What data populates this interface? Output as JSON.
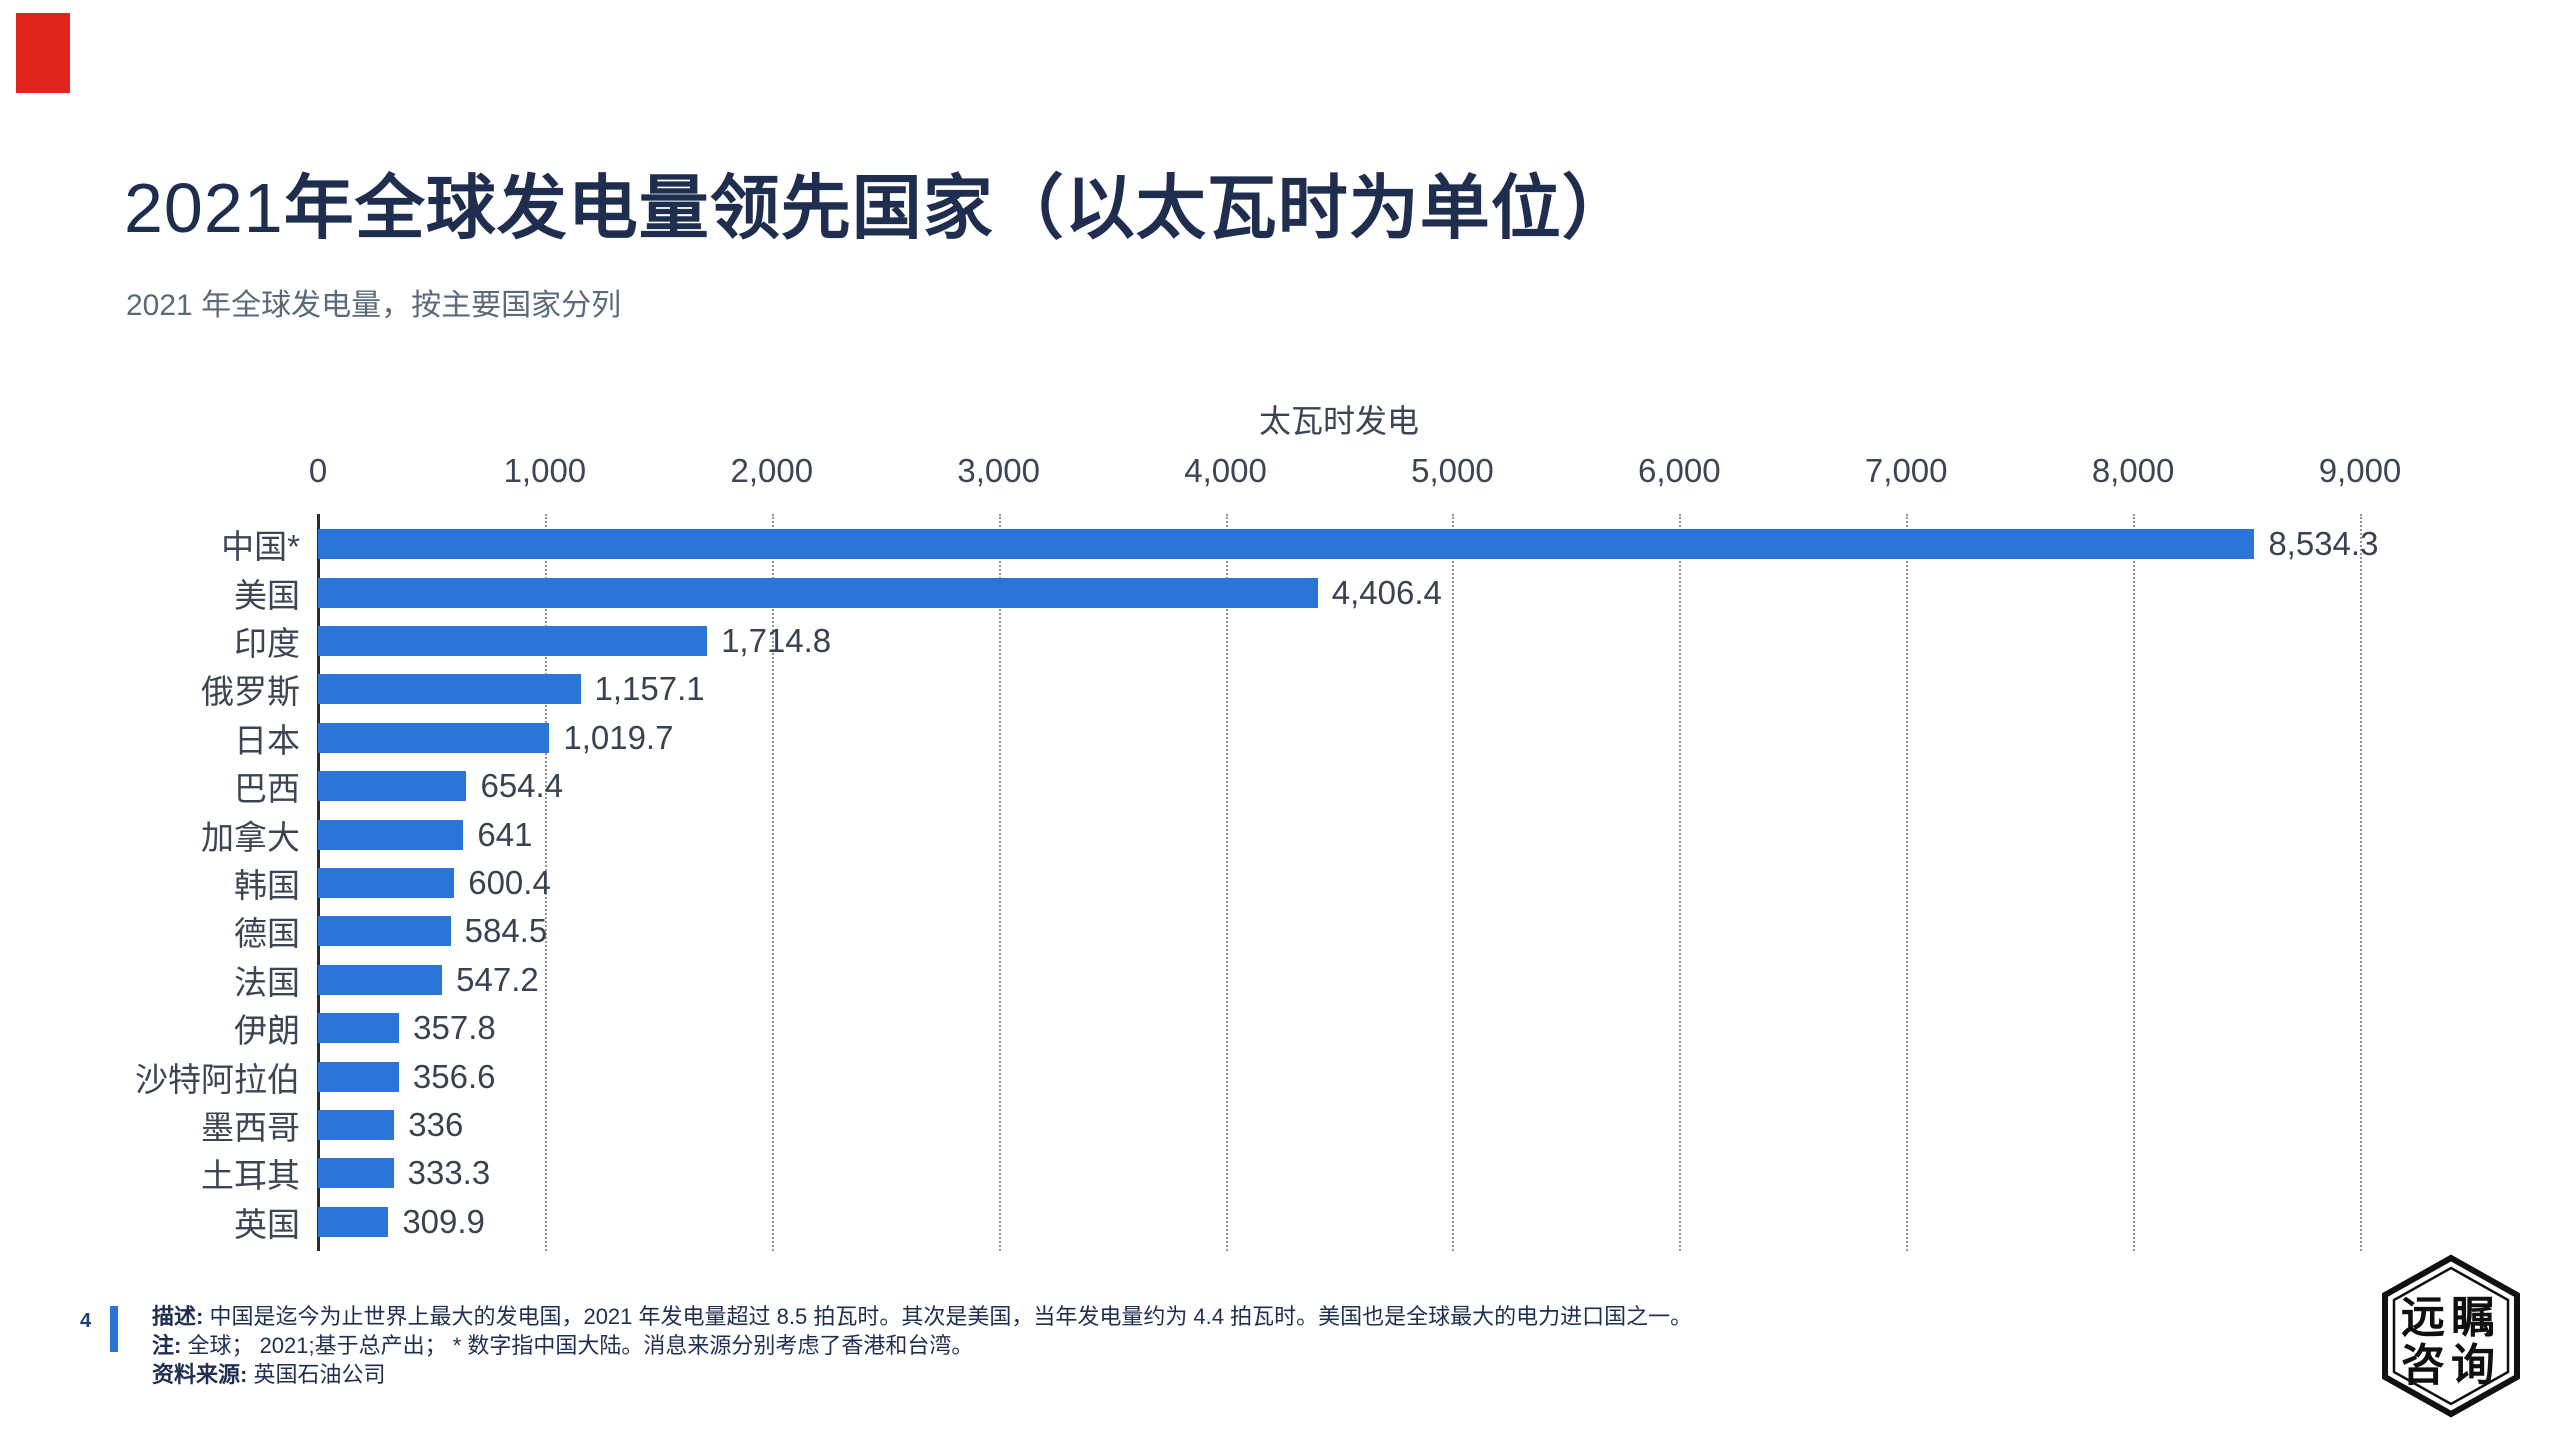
{
  "page": {
    "page_number": "4",
    "accent_red": "#e0231c",
    "accent_blue": "#2b75d8"
  },
  "header": {
    "title_prefix": "2021",
    "title_main": "年全球发电量领先国家（以太瓦时为单位）",
    "subtitle": "2021 年全球发电量，按主要国家分列"
  },
  "chart_data": {
    "type": "bar",
    "orientation": "horizontal",
    "xlabel": "太瓦时发电",
    "xlim": [
      0,
      9000
    ],
    "x_tick_step": 1000,
    "x_tick_labels": [
      "0",
      "1,000",
      "2,000",
      "3,000",
      "4,000",
      "5,000",
      "6,000",
      "7,000",
      "8,000",
      "9,000"
    ],
    "grid": "dotted-vertical",
    "bar_color": "#2b75d8",
    "categories": [
      "中国*",
      "美国",
      "印度",
      "俄罗斯",
      "日本",
      "巴西",
      "加拿大",
      "韩国",
      "德国",
      "法国",
      "伊朗",
      "沙特阿拉伯",
      "墨西哥",
      "土耳其",
      "英国"
    ],
    "values": [
      8534.3,
      4406.4,
      1714.8,
      1157.1,
      1019.7,
      654.4,
      641,
      600.4,
      584.5,
      547.2,
      357.8,
      356.6,
      336,
      333.3,
      309.9
    ],
    "value_labels": [
      "8,534.3",
      "4,406.4",
      "1,714.8",
      "1,157.1",
      "1,019.7",
      "654.4",
      "641",
      "600.4",
      "584.5",
      "547.2",
      "357.8",
      "356.6",
      "336",
      "333.3",
      "309.9"
    ]
  },
  "footer": {
    "page_number": "4",
    "desc_label": "描述:",
    "desc_text": "中国是迄今为止世界上最大的发电国，2021 年发电量超过 8.5 拍瓦时。其次是美国，当年发电量约为 4.4 拍瓦时。美国也是全球最大的电力进口国之一。",
    "note_label": "注:",
    "note_text": "全球； 2021;基于总产出； * 数字指中国大陆。消息来源分别考虑了香港和台湾。",
    "source_label": "资料来源:",
    "source_text": "英国石油公司"
  },
  "logo": {
    "line1": "远瞩",
    "line2": "咨询"
  }
}
